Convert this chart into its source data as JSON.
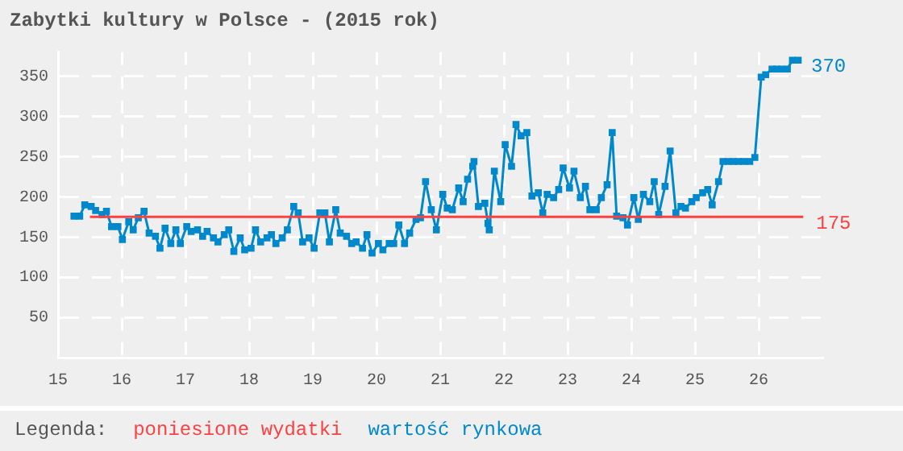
{
  "chart_data": {
    "type": "line",
    "title": "Zabytki kultury w Polsce - (2015 rok)",
    "legend_title": "Legenda:",
    "legend": "bottom",
    "grid": true,
    "line_style": "solid",
    "xlim": [
      15,
      27
    ],
    "xticks": [
      15,
      16,
      17,
      18,
      19,
      20,
      21,
      22,
      23,
      24,
      25,
      26
    ],
    "ylim": [
      0,
      380
    ],
    "yticks": [
      50,
      100,
      150,
      200,
      250,
      300,
      350
    ],
    "series": [
      {
        "name": "poniesione wydatki",
        "color": "#ff4040",
        "marker": "none",
        "x": [
          15.5,
          26.7
        ],
        "values": [
          175,
          175
        ],
        "value_labels": [
          null,
          "175"
        ]
      },
      {
        "name": "wartość rynkowa",
        "color": "#0088cc",
        "marker": "square",
        "x": [
          15.25,
          15.34,
          15.42,
          15.52,
          15.59,
          15.69,
          15.76,
          15.84,
          15.94,
          16.01,
          16.11,
          16.18,
          16.26,
          16.35,
          16.43,
          16.53,
          16.6,
          16.68,
          16.77,
          16.85,
          16.92,
          17.02,
          17.09,
          17.19,
          17.27,
          17.34,
          17.44,
          17.51,
          17.61,
          17.68,
          17.76,
          17.86,
          17.93,
          18.03,
          18.1,
          18.18,
          18.28,
          18.35,
          18.42,
          18.52,
          18.6,
          18.7,
          18.77,
          18.84,
          18.94,
          19.02,
          19.11,
          19.19,
          19.26,
          19.36,
          19.43,
          19.53,
          19.61,
          19.68,
          19.78,
          19.85,
          19.93,
          20.03,
          20.1,
          20.2,
          20.27,
          20.35,
          20.44,
          20.52,
          20.62,
          20.69,
          20.77,
          20.86,
          20.94,
          21.04,
          21.11,
          21.19,
          21.29,
          21.36,
          21.43,
          21.51,
          21.53,
          21.6,
          21.7,
          21.75,
          21.77,
          21.85,
          21.95,
          22.02,
          22.12,
          22.19,
          22.27,
          22.36,
          22.44,
          22.54,
          22.61,
          22.68,
          22.78,
          22.86,
          22.93,
          23.03,
          23.1,
          23.2,
          23.28,
          23.35,
          23.45,
          23.53,
          23.62,
          23.7,
          23.77,
          23.87,
          23.94,
          24.04,
          24.11,
          24.19,
          24.29,
          24.36,
          24.43,
          24.53,
          24.61,
          24.7,
          24.78,
          24.85,
          24.95,
          25.02,
          25.12,
          25.2,
          25.27,
          25.37,
          25.44,
          25.52,
          25.6,
          25.68,
          25.77,
          25.86,
          25.94,
          26.04,
          26.11,
          26.21,
          26.28,
          26.36,
          26.45,
          26.53,
          26.62
        ],
        "values": [
          176,
          176,
          190,
          188,
          183,
          178,
          182,
          163,
          163,
          147,
          169,
          159,
          174,
          182,
          155,
          151,
          136,
          161,
          142,
          159,
          142,
          163,
          157,
          159,
          151,
          157,
          149,
          144,
          153,
          159,
          132,
          149,
          134,
          136,
          159,
          144,
          149,
          153,
          142,
          149,
          159,
          188,
          180,
          144,
          149,
          136,
          180,
          180,
          144,
          184,
          155,
          151,
          142,
          144,
          136,
          153,
          130,
          142,
          134,
          142,
          142,
          165,
          142,
          155,
          172,
          174,
          219,
          184,
          159,
          203,
          186,
          184,
          211,
          194,
          222,
          238,
          244,
          188,
          192,
          167,
          159,
          232,
          194,
          265,
          238,
          290,
          276,
          280,
          201,
          205,
          180,
          203,
          199,
          209,
          236,
          211,
          232,
          199,
          213,
          184,
          184,
          199,
          215,
          280,
          176,
          174,
          165,
          199,
          172,
          203,
          194,
          219,
          178,
          213,
          257,
          180,
          188,
          186,
          194,
          199,
          205,
          209,
          190,
          219,
          244,
          244,
          244,
          244,
          244,
          244,
          249,
          349,
          352,
          359,
          359,
          359,
          359,
          370,
          370
        ],
        "value_labels": [
          null,
          null,
          null,
          null,
          null,
          null,
          null,
          null,
          null,
          null,
          null,
          null,
          null,
          null,
          null,
          null,
          null,
          null,
          null,
          null,
          null,
          null,
          null,
          null,
          null,
          null,
          null,
          null,
          null,
          null,
          null,
          null,
          null,
          null,
          null,
          null,
          null,
          null,
          null,
          null,
          null,
          null,
          null,
          null,
          null,
          null,
          null,
          null,
          null,
          null,
          null,
          null,
          null,
          null,
          null,
          null,
          null,
          null,
          null,
          null,
          null,
          null,
          null,
          null,
          null,
          null,
          null,
          null,
          null,
          null,
          null,
          null,
          null,
          null,
          null,
          null,
          null,
          null,
          null,
          null,
          null,
          null,
          null,
          null,
          null,
          null,
          null,
          null,
          null,
          null,
          null,
          null,
          null,
          null,
          null,
          null,
          null,
          null,
          null,
          null,
          null,
          null,
          null,
          null,
          null,
          null,
          null,
          null,
          null,
          null,
          null,
          null,
          null,
          null,
          null,
          null,
          null,
          null,
          null,
          null,
          null,
          null,
          null,
          null,
          null,
          null,
          null,
          null,
          null,
          null,
          null,
          null,
          null,
          null,
          null,
          null,
          null,
          null,
          "370"
        ]
      }
    ]
  }
}
